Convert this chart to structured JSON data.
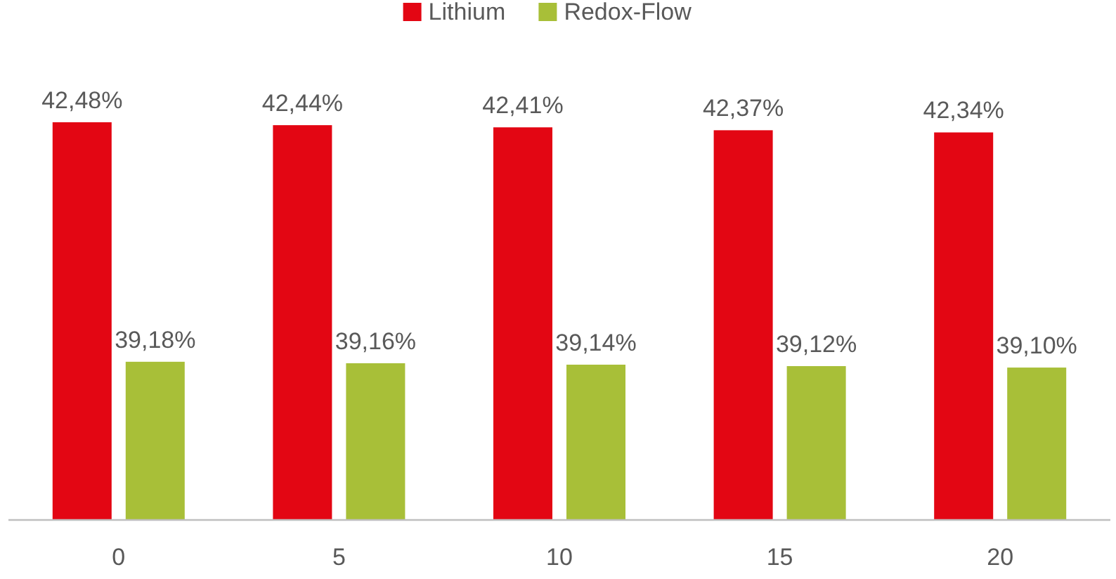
{
  "chart_data": {
    "type": "bar",
    "categories": [
      "0",
      "5",
      "10",
      "15",
      "20"
    ],
    "ylim": [
      37,
      42.48
    ],
    "tick_labels": "x",
    "legend": "top",
    "series": [
      {
        "name": "Lithium",
        "color": "#e30613",
        "values": [
          42.48,
          42.44,
          42.41,
          42.37,
          42.34
        ],
        "value_labels": [
          "42,48%",
          "42,44%",
          "42,41%",
          "42,37%",
          "42,34%"
        ]
      },
      {
        "name": "Redox-Flow",
        "color": "#a8bf38",
        "values": [
          39.18,
          39.16,
          39.14,
          39.12,
          39.1
        ],
        "value_labels": [
          "39,18%",
          "39,16%",
          "39,14%",
          "39,12%",
          "39,10%"
        ]
      }
    ]
  }
}
